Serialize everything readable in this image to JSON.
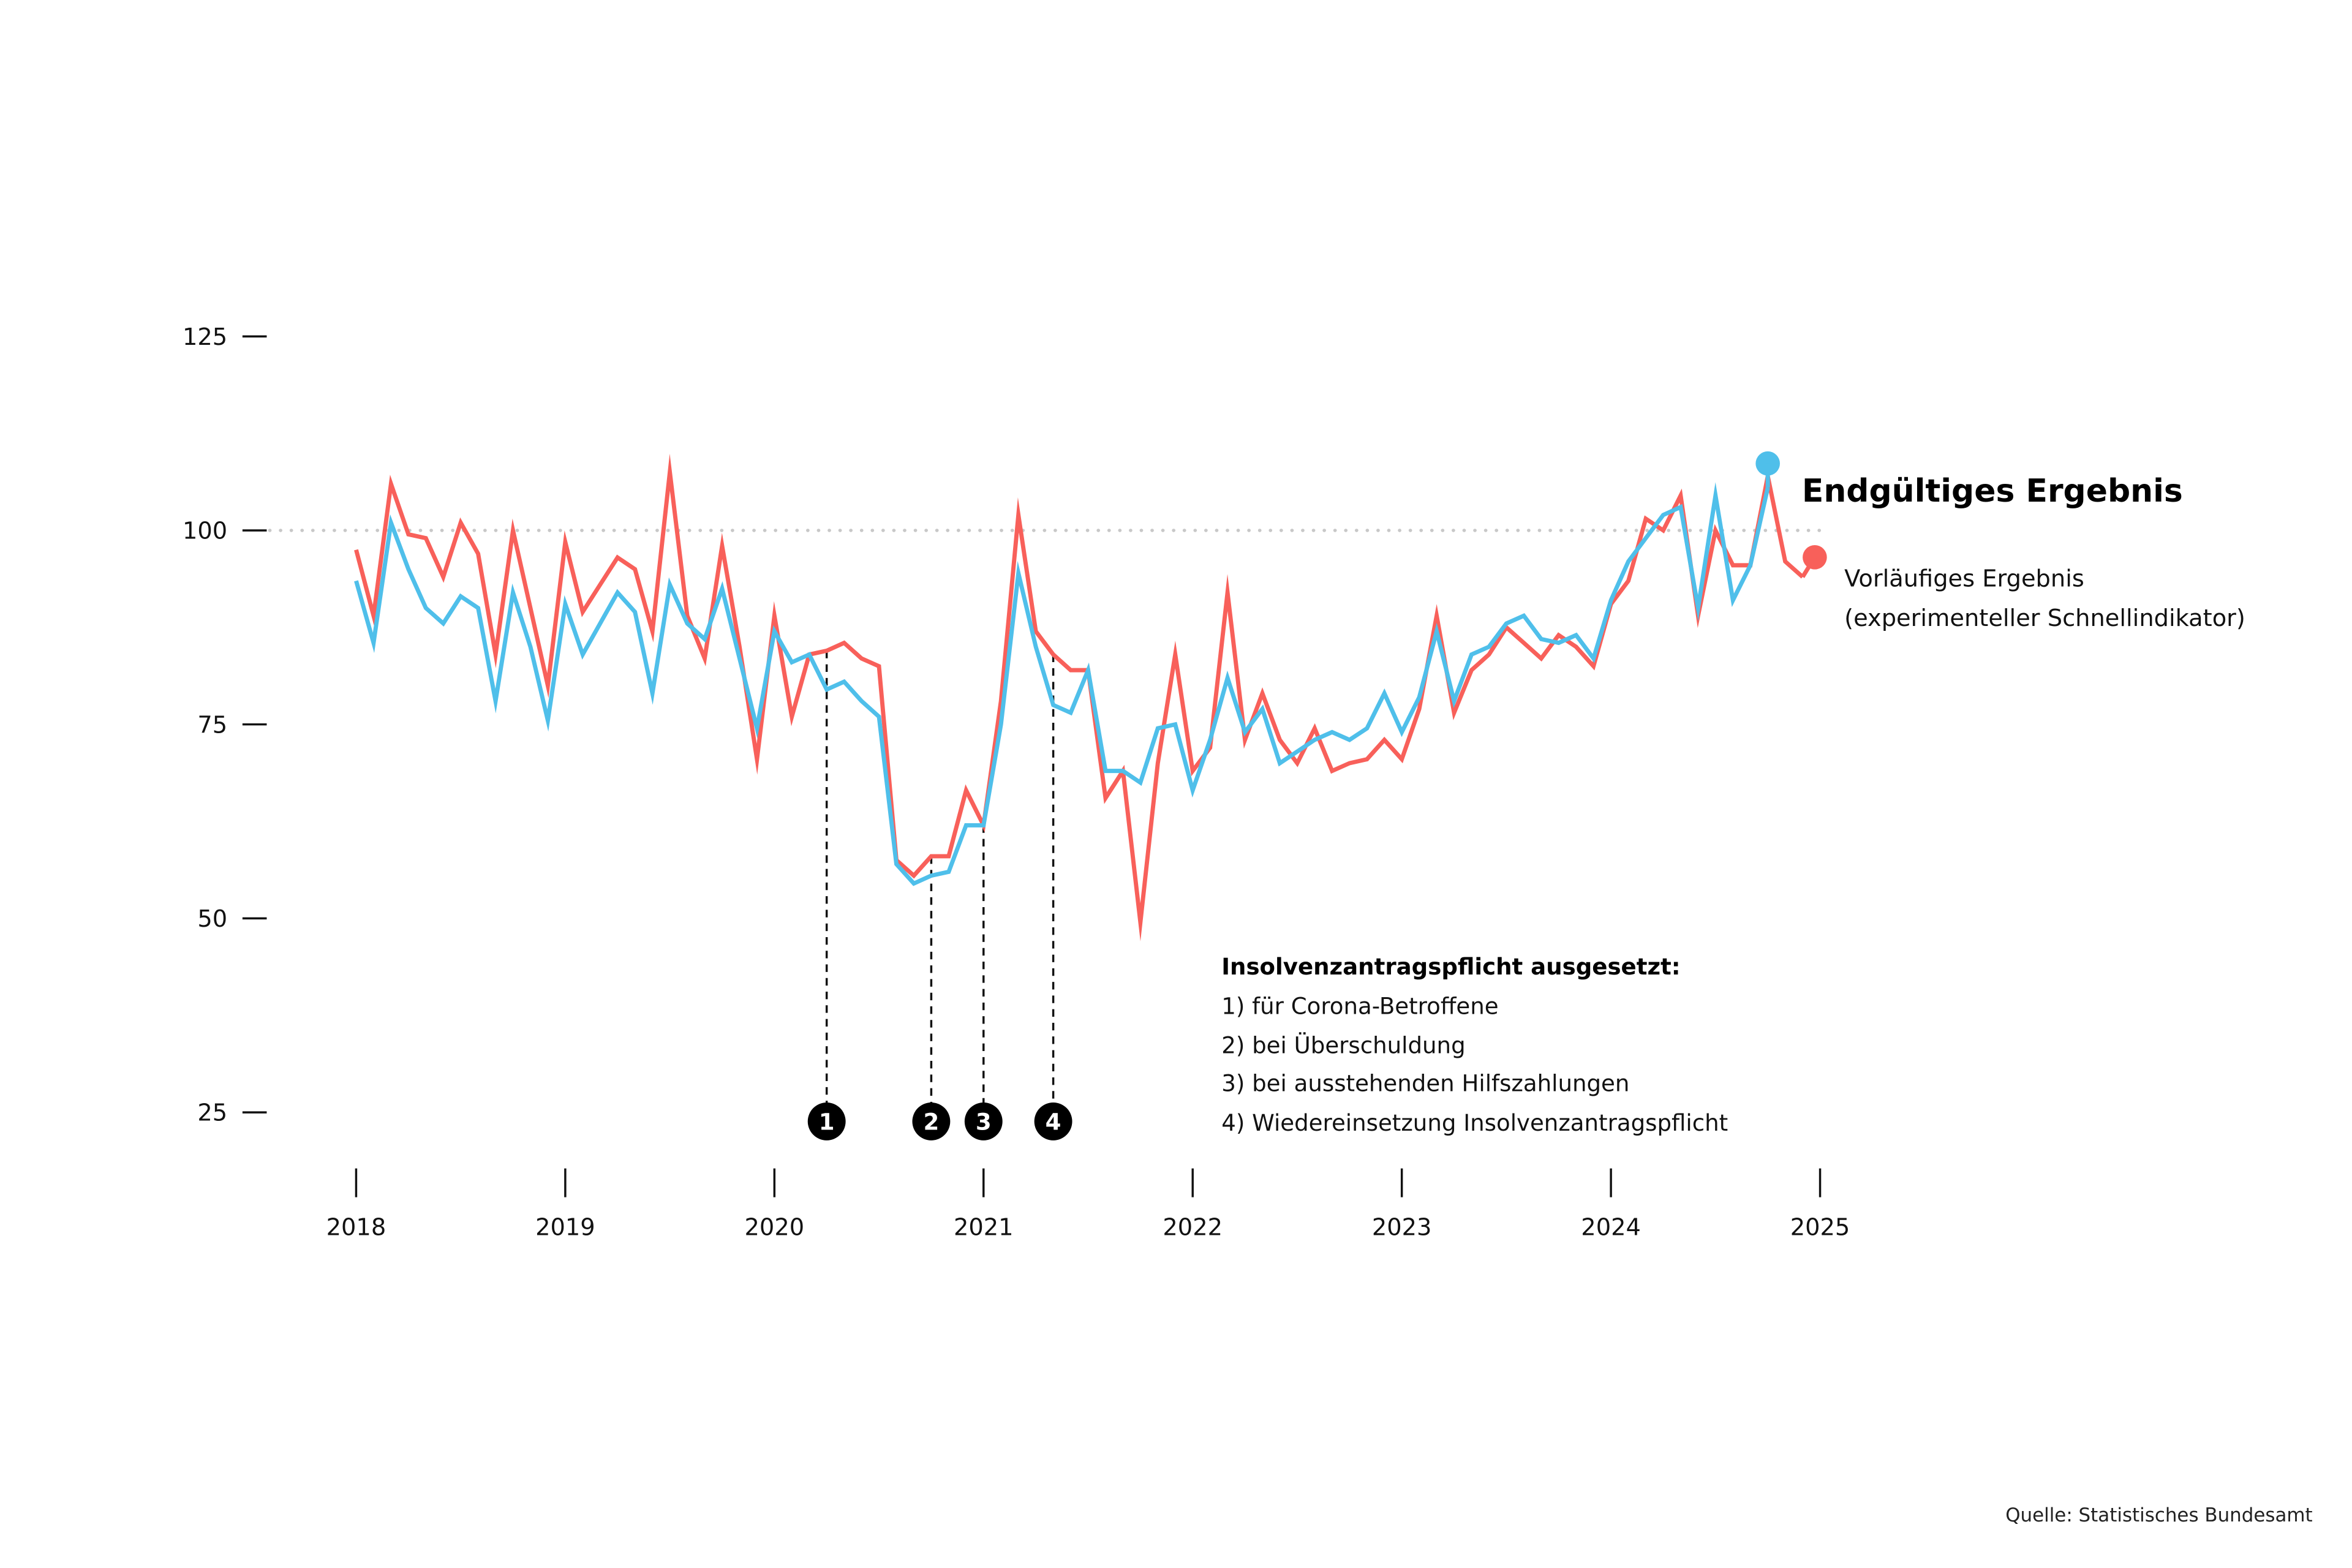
{
  "chart_data": {
    "type": "line",
    "title": "",
    "xlabel": "",
    "ylabel": "",
    "x_start": "2018-01",
    "x_frequency": "monthly",
    "x_ticks": [
      "2018",
      "2019",
      "2020",
      "2021",
      "2022",
      "2023",
      "2024",
      "2025"
    ],
    "y_ticks": [
      125,
      100,
      75,
      50,
      25
    ],
    "ylim": [
      20,
      135
    ],
    "reference_line": {
      "value": 100,
      "style": "dotted",
      "color": "#c8c8c8"
    },
    "grid": false,
    "series": [
      {
        "name": "Vorläufiges Ergebnis (experimenteller Schnellindikator)",
        "color": "#f8605a",
        "values": [
          97.5,
          89,
          106,
          99.5,
          99,
          94,
          101,
          97,
          84,
          100,
          90,
          80,
          98.5,
          89.5,
          93,
          96.5,
          95,
          87,
          107.5,
          89,
          83.5,
          98,
          85,
          70.5,
          89,
          76,
          84,
          84.5,
          85.5,
          83.5,
          82.5,
          57.5,
          55.5,
          58,
          58,
          66.5,
          62,
          78,
          102,
          87,
          84,
          82,
          82,
          65.5,
          69,
          49.5,
          70,
          84,
          69,
          72,
          92,
          73,
          79,
          73,
          70,
          74.5,
          69,
          70,
          70.5,
          73,
          70.5,
          77,
          89,
          76.5,
          82,
          84,
          87.5,
          85.5,
          83.5,
          86.5,
          85,
          82.5,
          90.5,
          93.5,
          101.5,
          100,
          104.5,
          89,
          100,
          95.5,
          95.5,
          107,
          96,
          94
        ]
      },
      {
        "name": "Endgültiges Ergebnis",
        "color": "#4fbfea",
        "values": [
          93.5,
          85.5,
          101,
          95,
          90,
          88,
          91.5,
          90,
          78,
          92,
          85,
          75.5,
          90.5,
          84,
          88,
          92,
          89.5,
          79,
          93,
          88,
          86,
          92.5,
          83.5,
          74.5,
          87,
          83,
          84,
          79.5,
          80.5,
          78,
          76,
          57,
          54.5,
          55.5,
          56,
          62,
          62,
          75,
          94.5,
          85,
          77.5,
          76.5,
          82,
          69,
          69,
          67.5,
          74.5,
          75,
          66.5,
          73,
          81,
          74,
          77,
          70,
          71.5,
          73,
          74,
          73,
          74.5,
          79,
          74,
          78.5,
          87,
          78,
          84,
          85,
          88,
          89,
          86,
          85.5,
          86.5,
          83.5,
          91,
          96,
          99,
          102,
          103,
          90,
          104.5,
          91,
          95.5,
          105.5
        ]
      }
    ],
    "legend": {
      "final": "Endgültiges Ergebnis",
      "preliminary_line1": "Vorläufiges Ergebnis",
      "preliminary_line2": "(experimenteller Schnellindikator)",
      "placement": "right, at line ends"
    },
    "markers": [
      {
        "label": "1",
        "date": "2020-04"
      },
      {
        "label": "2",
        "date": "2020-10"
      },
      {
        "label": "3",
        "date": "2021-01"
      },
      {
        "label": "4",
        "date": "2021-05"
      }
    ],
    "annotation": {
      "title": "Insolvenzantragspflicht ausgesetzt:",
      "items": [
        "1) für Corona-Betroffene",
        "2) bei Überschuldung",
        "3) bei ausstehenden Hilfszahlungen",
        "4) Wiedereinsetzung Insolvenzantragspflicht"
      ]
    },
    "source": "Quelle: Statistisches Bundesamt"
  }
}
